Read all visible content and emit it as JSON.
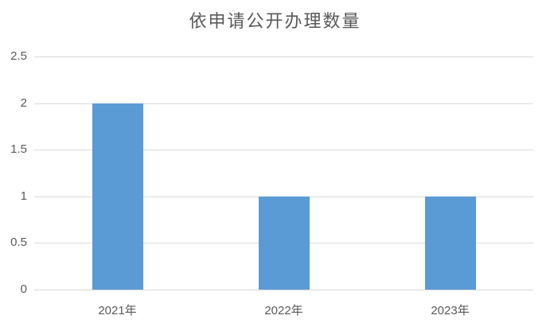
{
  "title": "依申请公开办理数量",
  "colors": {
    "bar": "#5b9bd5",
    "gridline": "#d9d9d9",
    "axis_line": "#d6d6d6",
    "text": "#595959",
    "background": "#ffffff"
  },
  "chart_data": {
    "type": "bar",
    "title": "依申请公开办理数量",
    "categories": [
      "2021年",
      "2022年",
      "2023年"
    ],
    "values": [
      2,
      1,
      1
    ],
    "xlabel": "",
    "ylabel": "",
    "ylim": [
      0,
      2.5
    ],
    "ytick_step": 0.5,
    "ytick_labels": [
      "0",
      "0.5",
      "1",
      "1.5",
      "2",
      "2.5"
    ],
    "grid": "horizontal-only",
    "legend": "none",
    "bar_color": "#5b9bd5"
  }
}
